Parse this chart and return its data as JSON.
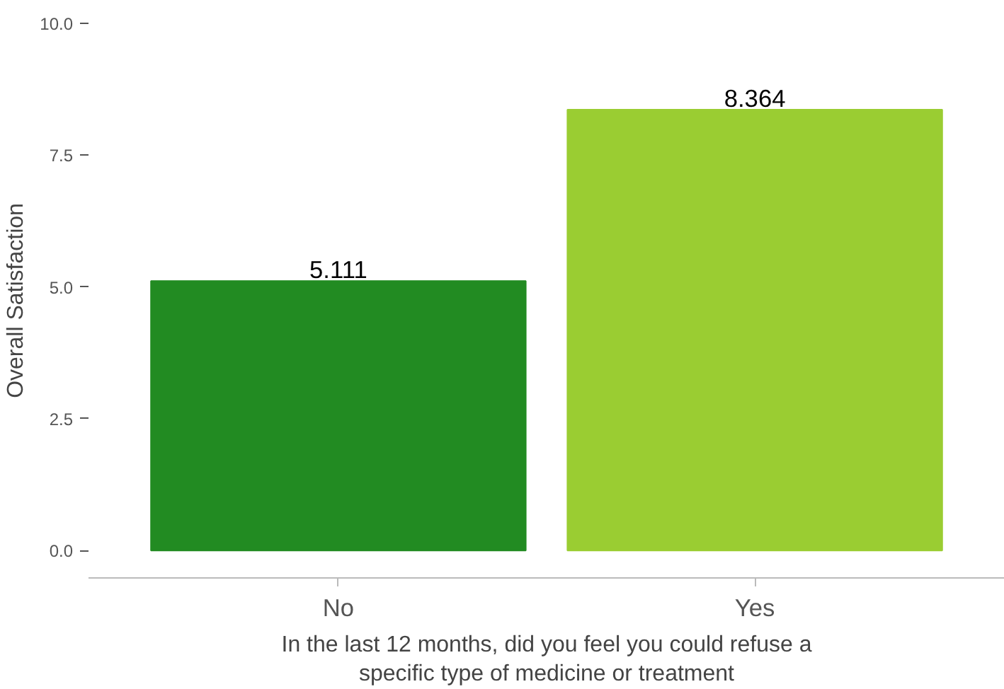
{
  "chart_data": {
    "type": "bar",
    "categories": [
      "No",
      "Yes"
    ],
    "values": [
      5.111,
      8.364
    ],
    "colors": [
      "#228b22",
      "#9acd32"
    ],
    "ylabel": "Overall Satisfaction",
    "xlabel": "In the last 12 months, did you feel you could refuse a\nspecific type of medicine or treatment",
    "ylim": [
      -0.52,
      10
    ],
    "yticks": [
      {
        "value": 0,
        "label": "0.0"
      },
      {
        "value": 2.5,
        "label": "2.5"
      },
      {
        "value": 5,
        "label": "5.0"
      },
      {
        "value": 7.5,
        "label": "7.5"
      },
      {
        "value": 10,
        "label": "10.0"
      }
    ],
    "data_labels": true,
    "grid": false
  }
}
